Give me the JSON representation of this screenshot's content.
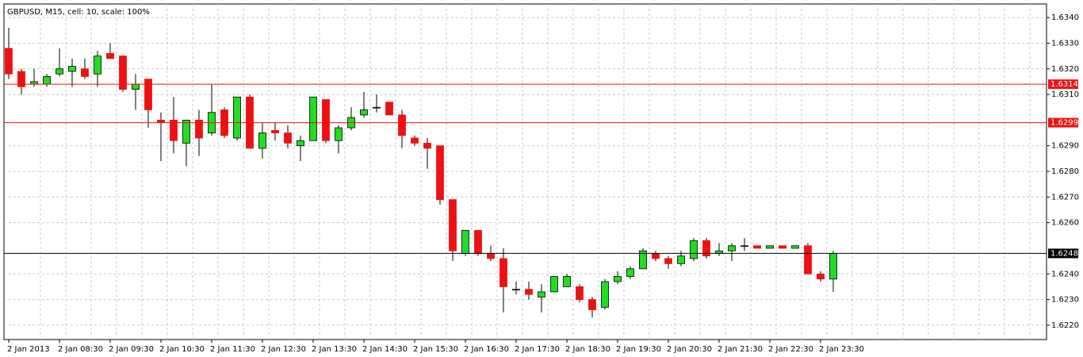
{
  "chart_data": {
    "type": "candlestick",
    "title": "GBPUSD, M15, cell: 10, scale: 100%",
    "categories": [
      "2 Jan 2013",
      null,
      null,
      null,
      "2 Jan 08:30",
      null,
      null,
      null,
      "2 Jan 09:30",
      null,
      null,
      null,
      "2 Jan 10:30",
      null,
      null,
      null,
      "2 Jan 11:30",
      null,
      null,
      null,
      "2 Jan 12:30",
      null,
      null,
      null,
      "2 Jan 13:30",
      null,
      null,
      null,
      "2 Jan 14:30",
      null,
      null,
      null,
      "2 Jan 15:30",
      null,
      null,
      null,
      "2 Jan 16:30",
      null,
      null,
      null,
      "2 Jan 17:30",
      null,
      null,
      null,
      "2 Jan 18:30",
      null,
      null,
      null,
      "2 Jan 19:30",
      null,
      null,
      null,
      "2 Jan 20:30",
      null,
      null,
      null,
      "2 Jan 21:30",
      null,
      null,
      null,
      "2 Jan 22:30",
      null,
      null,
      null,
      "2 Jan 23:30",
      null
    ],
    "open": [
      1.6328,
      1.6319,
      1.6314,
      1.6314,
      1.6318,
      1.6319,
      1.632,
      1.6318,
      1.6326,
      1.6325,
      1.6312,
      1.6316,
      1.63,
      1.63,
      1.6291,
      1.63,
      1.6295,
      1.6304,
      1.6293,
      1.6309,
      1.6289,
      1.6296,
      1.6295,
      1.629,
      1.6292,
      1.6308,
      1.6292,
      1.6297,
      1.6302,
      1.6305,
      1.6307,
      1.6302,
      1.6293,
      1.6291,
      1.629,
      1.6269,
      1.6248,
      1.6257,
      1.6248,
      1.6246,
      1.6234,
      1.6234,
      1.6231,
      1.6233,
      1.6235,
      1.6235,
      1.623,
      1.6227,
      1.6237,
      1.6239,
      1.6242,
      1.6248,
      1.6246,
      1.6244,
      1.6246,
      1.6253,
      1.6248,
      1.6249,
      1.6251,
      1.6251,
      1.625,
      1.6251,
      1.625,
      1.6251,
      1.624,
      1.6238
    ],
    "high": [
      1.6336,
      1.632,
      1.632,
      1.6318,
      1.6328,
      1.6324,
      1.6324,
      1.6327,
      1.633,
      1.6325,
      1.6318,
      1.6316,
      1.6303,
      1.6309,
      1.63,
      1.6304,
      1.6314,
      1.6305,
      1.6309,
      1.631,
      1.6299,
      1.6299,
      1.6298,
      1.6294,
      1.6309,
      1.6308,
      1.6298,
      1.6305,
      1.6311,
      1.631,
      1.6307,
      1.6304,
      1.6294,
      1.6293,
      1.629,
      1.6269,
      1.6257,
      1.6257,
      1.6251,
      1.625,
      1.6237,
      1.6237,
      1.6236,
      1.6239,
      1.624,
      1.6236,
      1.6231,
      1.6238,
      1.6241,
      1.6243,
      1.625,
      1.6249,
      1.6247,
      1.6249,
      1.6254,
      1.6254,
      1.6252,
      1.6252,
      1.6254,
      1.6251,
      1.6251,
      1.6251,
      1.6251,
      1.6252,
      1.6241,
      1.6249
    ],
    "low": [
      1.6316,
      1.631,
      1.6313,
      1.6313,
      1.6317,
      1.6313,
      1.6316,
      1.6313,
      1.6324,
      1.6311,
      1.6304,
      1.6297,
      1.6284,
      1.6287,
      1.6282,
      1.6286,
      1.6294,
      1.6293,
      1.6292,
      1.6289,
      1.6285,
      1.6292,
      1.6289,
      1.6284,
      1.6292,
      1.6291,
      1.6287,
      1.6296,
      1.6301,
      1.6303,
      1.6302,
      1.6289,
      1.629,
      1.6281,
      1.6267,
      1.6245,
      1.6247,
      1.6247,
      1.6245,
      1.6225,
      1.6232,
      1.623,
      1.6225,
      1.6233,
      1.6235,
      1.6229,
      1.6223,
      1.6226,
      1.6236,
      1.6238,
      1.6242,
      1.6245,
      1.6242,
      1.6243,
      1.6245,
      1.6246,
      1.6247,
      1.6245,
      1.6249,
      1.625,
      1.625,
      1.625,
      1.625,
      1.624,
      1.6237,
      1.6233
    ],
    "close": [
      1.6318,
      1.6313,
      1.6315,
      1.6317,
      1.632,
      1.6321,
      1.6317,
      1.6325,
      1.6324,
      1.6312,
      1.6314,
      1.6304,
      1.6299,
      1.6292,
      1.63,
      1.6293,
      1.6303,
      1.6294,
      1.6309,
      1.6289,
      1.6295,
      1.6295,
      1.6291,
      1.6292,
      1.6309,
      1.6292,
      1.6297,
      1.6301,
      1.6304,
      1.6305,
      1.6302,
      1.6294,
      1.6291,
      1.6289,
      1.6269,
      1.6249,
      1.6257,
      1.6248,
      1.6246,
      1.6235,
      1.6234,
      1.6232,
      1.6233,
      1.6239,
      1.6239,
      1.623,
      1.6226,
      1.6237,
      1.6239,
      1.6242,
      1.6249,
      1.6246,
      1.6244,
      1.6247,
      1.6253,
      1.6247,
      1.6249,
      1.6251,
      1.6251,
      1.625,
      1.6251,
      1.625,
      1.6251,
      1.624,
      1.6238,
      1.6248
    ],
    "up_color": "#22dd22",
    "down_color": "#ee1111",
    "ylim": [
      1.62144,
      1.63453
    ],
    "yticks": [
      {
        "value": 1.634,
        "label": "1.6340"
      },
      {
        "value": 1.633,
        "label": "1.6330"
      },
      {
        "value": 1.632,
        "label": "1.6320"
      },
      {
        "value": 1.631,
        "label": "1.6310"
      },
      {
        "value": 1.629,
        "label": "1.6290"
      },
      {
        "value": 1.628,
        "label": "1.6280"
      },
      {
        "value": 1.627,
        "label": "1.6270"
      },
      {
        "value": 1.626,
        "label": "1.6260"
      },
      {
        "value": 1.624,
        "label": "1.6240"
      },
      {
        "value": 1.623,
        "label": "1.6230"
      },
      {
        "value": 1.622,
        "label": "1.6220"
      }
    ],
    "hlines": [
      {
        "value": 1.6314,
        "color": "#ee1111"
      },
      {
        "value": 1.6299,
        "color": "#ee1111"
      },
      {
        "value": 1.6248,
        "color": "#000000"
      }
    ],
    "grid": true
  }
}
